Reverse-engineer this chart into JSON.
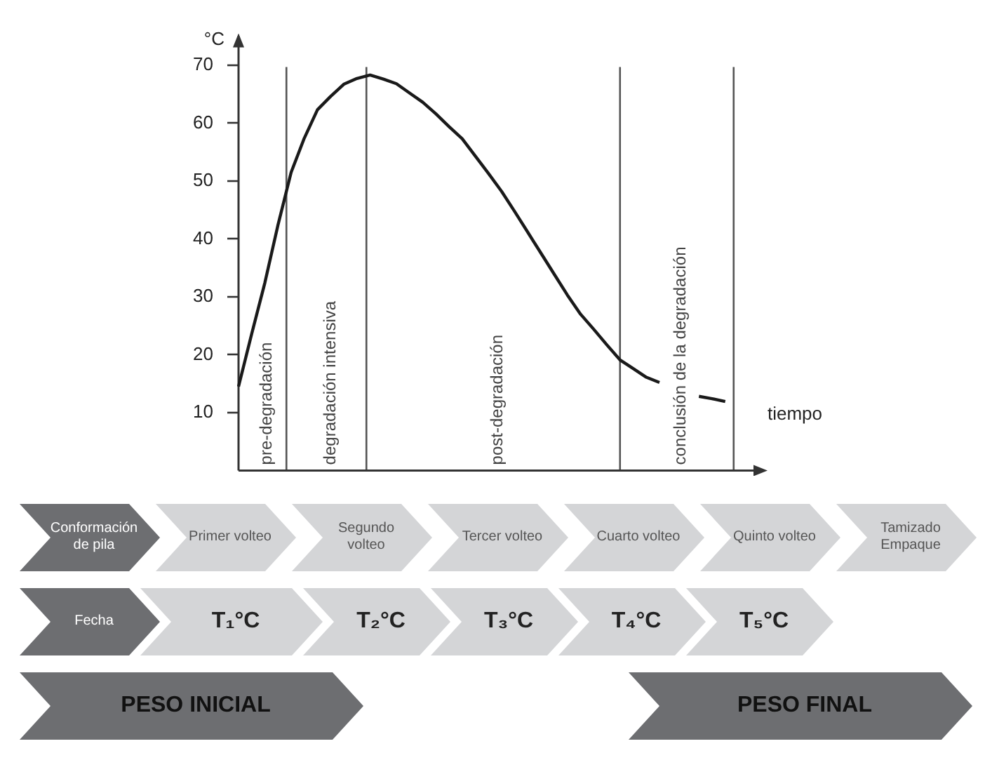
{
  "chart_data": {
    "type": "line",
    "ylabel": "°C",
    "categories": [
      null,
      null,
      null,
      null,
      null,
      null,
      null,
      null,
      null,
      null,
      null,
      null,
      null,
      null,
      null,
      null,
      null,
      null,
      null,
      null,
      null,
      null,
      null,
      null,
      null,
      null,
      null,
      null,
      null,
      null,
      null,
      null,
      null,
      null,
      null,
      null,
      null,
      null,
      null,
      null,
      null
    ],
    "series": [
      {
        "color": "#1a1a1a",
        "values": [
          14.5,
          23.6,
          32.4,
          42.4,
          51.5,
          57.4,
          62.3,
          64.6,
          66.7,
          67.7,
          68.3,
          67.6,
          66.8,
          65.2,
          63.6,
          61.6,
          59.4,
          57.3,
          54.3,
          51.3,
          48.2,
          44.7,
          41.1,
          37.5,
          33.9,
          30.3,
          27.0,
          24.4,
          21.7,
          19.1,
          17.6,
          16.1,
          15.2,
          null,
          null,
          null,
          null,
          null,
          null,
          null,
          null
        ]
      },
      {
        "color": "#1a1a1a",
        "values": [
          null,
          null,
          null,
          null,
          null,
          null,
          null,
          null,
          null,
          null,
          null,
          null,
          null,
          null,
          null,
          null,
          null,
          null,
          null,
          null,
          null,
          null,
          null,
          null,
          null,
          null,
          null,
          null,
          null,
          null,
          null,
          null,
          null,
          null,
          null,
          12.8,
          12.4,
          11.9,
          null,
          null,
          null
        ]
      }
    ],
    "ylim": [
      0,
      75
    ],
    "yticks": [
      10,
      20,
      30,
      40,
      50,
      60,
      70
    ],
    "tick_labels": "y",
    "grid": false,
    "legend": false,
    "marker": "none",
    "line_style": "solid",
    "annotations": [
      "pre-degradación",
      "degradación intensiva",
      "post-degradación",
      "conclusión de la degradación",
      "tiempo",
      "Conformación de pila",
      "Primer volteo",
      "Segundo volteo",
      "Tercer volteo",
      "Cuarto volteo",
      "Quinto volteo",
      "Tamizado Empaque",
      "Fecha",
      "T₁°C",
      "T₂°C",
      "T₃°C",
      "T₄°C",
      "T₅°C",
      "PESO INICIAL",
      "PESO FINAL"
    ]
  }
}
